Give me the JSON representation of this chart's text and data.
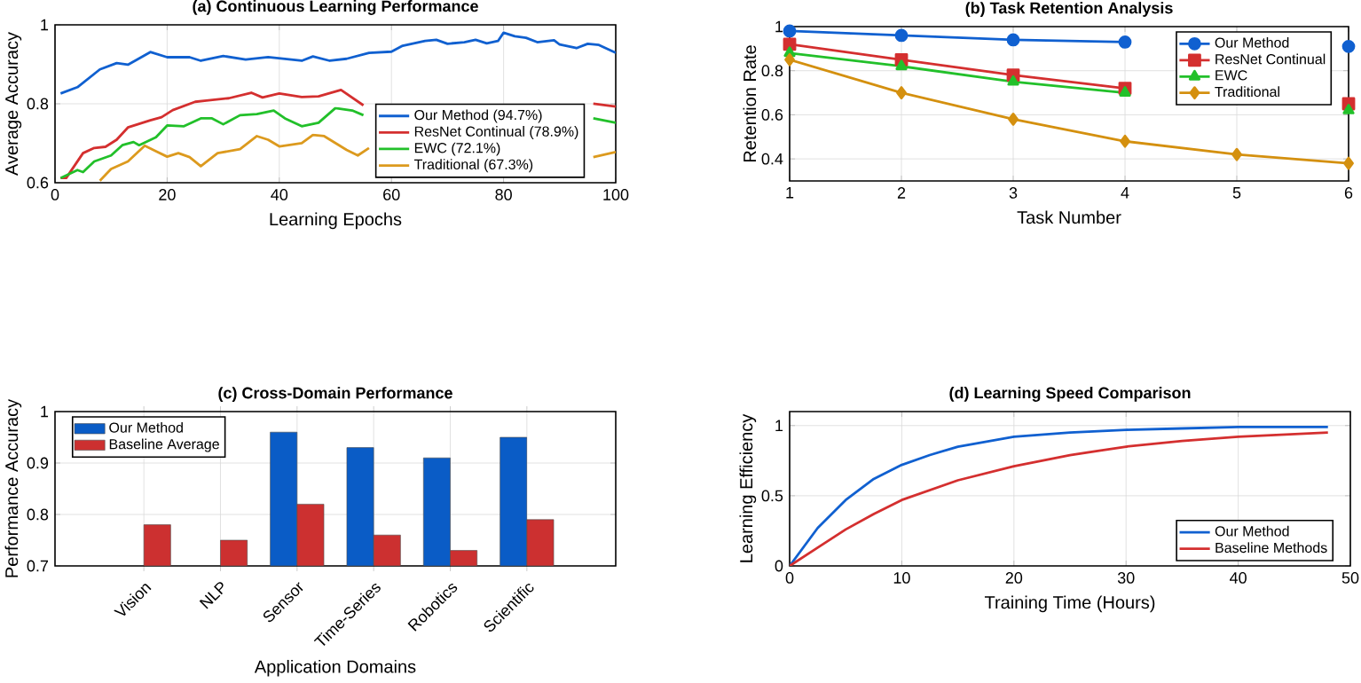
{
  "chart_data": [
    {
      "type": "line",
      "title": "(a) Continuous Learning Performance",
      "xlabel": "Learning Epochs",
      "ylabel": "Average Accuracy",
      "xlim": [
        0,
        100
      ],
      "ylim": [
        0.6,
        1
      ],
      "xticks": [
        0,
        20,
        40,
        60,
        80,
        100
      ],
      "yticks": [
        0.6,
        0.8,
        1
      ],
      "grid": true,
      "legend": "bottom right",
      "marker": "none",
      "series": [
        {
          "name": "Our Method (94.7%)",
          "color": "#1060d0",
          "x": [
            1,
            4,
            8,
            11,
            13,
            17,
            20,
            24,
            26,
            30,
            34,
            38,
            44,
            46,
            49,
            52,
            56,
            60,
            62,
            66,
            68,
            70,
            73,
            75,
            77,
            79,
            80,
            82,
            84,
            86,
            89,
            90,
            93,
            95,
            97,
            100
          ],
          "values": [
            0.826,
            0.842,
            0.887,
            0.903,
            0.899,
            0.931,
            0.918,
            0.918,
            0.909,
            0.921,
            0.912,
            0.918,
            0.909,
            0.92,
            0.909,
            0.914,
            0.929,
            0.932,
            0.947,
            0.959,
            0.962,
            0.952,
            0.956,
            0.962,
            0.953,
            0.959,
            0.98,
            0.971,
            0.967,
            0.956,
            0.961,
            0.95,
            0.941,
            0.952,
            0.949,
            0.929
          ]
        },
        {
          "name": "ResNet Continual (78.9%)",
          "color": "#d42f2f",
          "x": [
            1,
            2,
            5,
            7,
            9,
            11,
            13,
            17,
            19,
            21,
            25,
            27,
            31,
            35,
            37,
            40,
            44,
            47,
            51,
            55,
            77,
            96,
            100
          ],
          "values": [
            0.612,
            0.612,
            0.675,
            0.688,
            0.691,
            0.709,
            0.74,
            0.758,
            0.766,
            0.784,
            0.805,
            0.808,
            0.814,
            0.828,
            0.816,
            0.826,
            0.817,
            0.819,
            0.835,
            0.796,
            null,
            0.8,
            0.793
          ]
        },
        {
          "name": "EWC (72.1%)",
          "color": "#22c02a",
          "x": [
            1,
            4,
            5,
            7,
            10,
            12,
            14,
            15,
            18,
            20,
            23,
            26,
            28,
            30,
            33,
            36,
            39,
            41,
            44,
            47,
            50,
            53,
            55,
            77,
            96,
            100
          ],
          "values": [
            0.612,
            0.632,
            0.627,
            0.654,
            0.669,
            0.695,
            0.703,
            0.695,
            0.715,
            0.745,
            0.743,
            0.763,
            0.763,
            0.748,
            0.771,
            0.774,
            0.783,
            0.763,
            0.743,
            0.752,
            0.789,
            0.783,
            0.771,
            null,
            0.763,
            0.752
          ]
        },
        {
          "name": "Traditional (67.3%)",
          "color": "#dc9a1e",
          "x": [
            8,
            10,
            13,
            16,
            18,
            20,
            22,
            24,
            26,
            29,
            33,
            36,
            38,
            40,
            44,
            46,
            48,
            52,
            54,
            56,
            77,
            96,
            100
          ],
          "values": [
            0.605,
            0.635,
            0.654,
            0.694,
            0.68,
            0.666,
            0.675,
            0.665,
            0.642,
            0.675,
            0.685,
            0.718,
            0.709,
            0.692,
            0.7,
            0.721,
            0.718,
            0.683,
            0.669,
            0.688,
            null,
            0.665,
            0.678
          ]
        }
      ]
    },
    {
      "type": "line",
      "title": "(b) Task Retention Analysis",
      "xlabel": "Task Number",
      "ylabel": "Retention Rate",
      "x": [
        1,
        2,
        3,
        4,
        5,
        6
      ],
      "xlim": [
        1,
        6
      ],
      "ylim": [
        0.3,
        1
      ],
      "xticks": [
        1,
        2,
        3,
        4,
        5,
        6
      ],
      "yticks": [
        0.4,
        0.6,
        0.8,
        1
      ],
      "grid": true,
      "legend": "top right",
      "series": [
        {
          "name": "Our Method",
          "color": "#1060d0",
          "marker": "circle",
          "values": [
            0.98,
            0.96,
            0.94,
            0.93,
            null,
            0.91
          ]
        },
        {
          "name": "ResNet Continual",
          "color": "#d42f2f",
          "marker": "square",
          "values": [
            0.92,
            0.85,
            0.78,
            0.72,
            null,
            0.65
          ]
        },
        {
          "name": "EWC",
          "color": "#22c02a",
          "marker": "triangle",
          "values": [
            0.88,
            0.82,
            0.75,
            0.7,
            null,
            0.62
          ]
        },
        {
          "name": "Traditional",
          "color": "#d4900f",
          "marker": "diamond",
          "values": [
            0.85,
            0.7,
            0.58,
            0.48,
            0.42,
            0.38
          ]
        }
      ]
    },
    {
      "type": "bar",
      "title": "(c) Cross-Domain Performance",
      "xlabel": "Application Domains",
      "ylabel": "Performance Accuracy",
      "categories": [
        "Vision",
        "NLP",
        "Sensor",
        "Time-Series",
        "Robotics",
        "Scientific"
      ],
      "ylim": [
        0.7,
        1
      ],
      "yticks": [
        0.7,
        0.8,
        0.9,
        1
      ],
      "grid": true,
      "legend": "top left",
      "series": [
        {
          "name": "Our Method",
          "color": "#0a5cc6",
          "values": [
            null,
            null,
            0.96,
            0.93,
            0.91,
            0.95
          ]
        },
        {
          "name": "Baseline Average",
          "color": "#cc3030",
          "values": [
            0.78,
            0.75,
            0.82,
            0.76,
            0.73,
            0.79
          ]
        }
      ]
    },
    {
      "type": "line",
      "title": "(d) Learning Speed Comparison",
      "xlabel": "Training Time (Hours)",
      "ylabel": "Learning Efficiency",
      "xlim": [
        0,
        50
      ],
      "ylim": [
        0,
        1.1
      ],
      "xticks": [
        0,
        10,
        20,
        30,
        40,
        50
      ],
      "yticks": [
        0,
        0.5,
        1
      ],
      "grid": true,
      "legend": "bottom right",
      "marker": "none",
      "series": [
        {
          "name": "Our Method",
          "color": "#1060d0",
          "x": [
            0,
            2.5,
            5,
            7.5,
            10,
            12.5,
            15,
            20,
            25,
            30,
            35,
            40,
            48
          ],
          "values": [
            0,
            0.27,
            0.47,
            0.62,
            0.72,
            0.79,
            0.85,
            0.92,
            0.95,
            0.97,
            0.98,
            0.99,
            0.99
          ]
        },
        {
          "name": "Baseline Methods",
          "color": "#d42f2f",
          "x": [
            0,
            2.5,
            5,
            7.5,
            10,
            12.5,
            15,
            20,
            25,
            30,
            35,
            40,
            48
          ],
          "values": [
            0,
            0.13,
            0.26,
            0.37,
            0.47,
            0.54,
            0.61,
            0.71,
            0.79,
            0.85,
            0.89,
            0.92,
            0.95
          ]
        }
      ]
    }
  ]
}
